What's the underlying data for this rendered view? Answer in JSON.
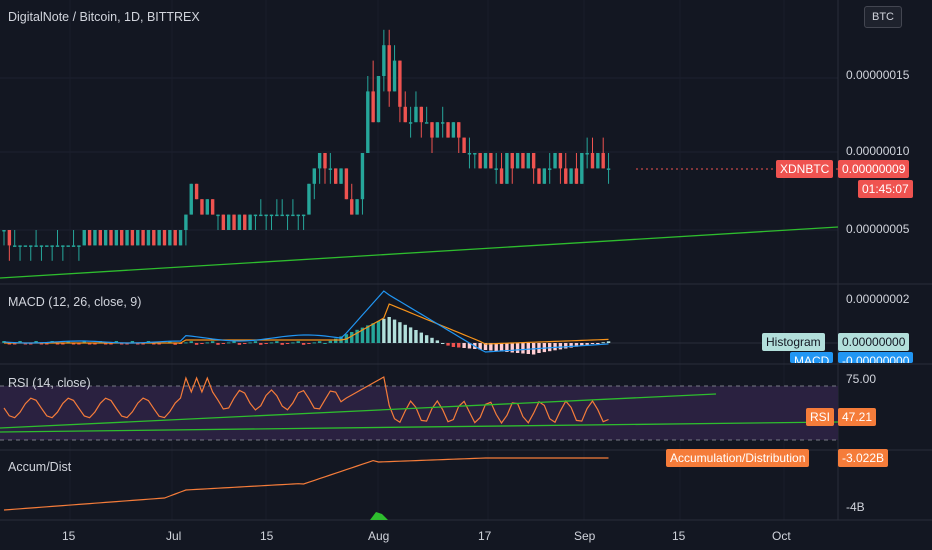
{
  "header": {
    "title": "DigitalNote / Bitcoin, 1D, BITTREX",
    "currency_button": "BTC"
  },
  "price_axis": {
    "ticks": [
      "0.00000015",
      "0.00000010",
      "0.00000005"
    ],
    "symbol_tag": "XDNBTC",
    "last_price": "0.00000009",
    "countdown": "01:45:07"
  },
  "macd": {
    "title": "MACD (12, 26, close, 9)",
    "axis_tick": "0.00000002",
    "histogram_label": "Histogram",
    "histogram_value": "0.00000000",
    "macd_label": "MACD",
    "macd_value": "-0.00000000"
  },
  "rsi": {
    "title": "RSI (14, close)",
    "axis_tick": "75.00",
    "label": "RSI",
    "value": "47.21"
  },
  "accum": {
    "title": "Accum/Dist",
    "label": "Accumulation/Distribution",
    "value": "-3.022B",
    "axis_tick": "-4B"
  },
  "time_axis": {
    "ticks": [
      "15",
      "Jul",
      "15",
      "Aug",
      "17",
      "Sep",
      "15",
      "Oct"
    ]
  },
  "colors": {
    "background": "#131722",
    "up": "#26a69a",
    "down": "#ef5350",
    "trendline": "#2ebd2e",
    "signal": "#f7931a",
    "macd_line": "#2196f3",
    "rsi_line": "#f57c3a",
    "accum_line": "#f57c3a",
    "rsi_band": "#2a2140"
  },
  "chart_data": {
    "type": "candlestick",
    "title": "DigitalNote / Bitcoin, 1D, BITTREX",
    "y_ticks": [
      1.5e-07,
      1e-07,
      5e-08
    ],
    "x_tick_labels": [
      "15",
      "Jul",
      "15",
      "Aug",
      "17",
      "Sep",
      "15",
      "Oct"
    ],
    "candles": [
      {
        "o": 5,
        "h": 5,
        "l": 4,
        "c": 5
      },
      {
        "o": 5,
        "h": 5,
        "l": 3,
        "c": 4
      },
      {
        "o": 4,
        "h": 5,
        "l": 4,
        "c": 4
      },
      {
        "o": 4,
        "h": 4,
        "l": 3,
        "c": 4
      },
      {
        "o": 4,
        "h": 4,
        "l": 4,
        "c": 4
      },
      {
        "o": 4,
        "h": 4,
        "l": 3,
        "c": 4
      },
      {
        "o": 4,
        "h": 5,
        "l": 4,
        "c": 4
      },
      {
        "o": 4,
        "h": 4,
        "l": 3,
        "c": 4
      },
      {
        "o": 4,
        "h": 4,
        "l": 4,
        "c": 4
      },
      {
        "o": 4,
        "h": 4,
        "l": 3,
        "c": 4
      },
      {
        "o": 4,
        "h": 5,
        "l": 4,
        "c": 4
      },
      {
        "o": 4,
        "h": 4,
        "l": 3,
        "c": 4
      },
      {
        "o": 4,
        "h": 4,
        "l": 4,
        "c": 4
      },
      {
        "o": 4,
        "h": 5,
        "l": 4,
        "c": 4
      },
      {
        "o": 4,
        "h": 4,
        "l": 3,
        "c": 4
      },
      {
        "o": 4,
        "h": 5,
        "l": 4,
        "c": 5
      },
      {
        "o": 5,
        "h": 5,
        "l": 4,
        "c": 4
      },
      {
        "o": 4,
        "h": 5,
        "l": 4,
        "c": 5
      },
      {
        "o": 5,
        "h": 5,
        "l": 4,
        "c": 4
      },
      {
        "o": 4,
        "h": 5,
        "l": 4,
        "c": 5
      },
      {
        "o": 5,
        "h": 5,
        "l": 4,
        "c": 4
      },
      {
        "o": 4,
        "h": 5,
        "l": 4,
        "c": 5
      },
      {
        "o": 5,
        "h": 5,
        "l": 4,
        "c": 4
      },
      {
        "o": 4,
        "h": 5,
        "l": 4,
        "c": 5
      },
      {
        "o": 5,
        "h": 5,
        "l": 4,
        "c": 4
      },
      {
        "o": 4,
        "h": 5,
        "l": 4,
        "c": 5
      },
      {
        "o": 5,
        "h": 5,
        "l": 4,
        "c": 4
      },
      {
        "o": 4,
        "h": 5,
        "l": 4,
        "c": 5
      },
      {
        "o": 5,
        "h": 5,
        "l": 4,
        "c": 4
      },
      {
        "o": 4,
        "h": 5,
        "l": 4,
        "c": 5
      },
      {
        "o": 5,
        "h": 5,
        "l": 4,
        "c": 4
      },
      {
        "o": 4,
        "h": 5,
        "l": 4,
        "c": 5
      },
      {
        "o": 5,
        "h": 5,
        "l": 4,
        "c": 4
      },
      {
        "o": 4,
        "h": 5,
        "l": 4,
        "c": 5
      },
      {
        "o": 5,
        "h": 6,
        "l": 4,
        "c": 6
      },
      {
        "o": 6,
        "h": 8,
        "l": 6,
        "c": 8
      },
      {
        "o": 8,
        "h": 8,
        "l": 7,
        "c": 7
      },
      {
        "o": 7,
        "h": 7,
        "l": 6,
        "c": 6
      },
      {
        "o": 6,
        "h": 7,
        "l": 6,
        "c": 7
      },
      {
        "o": 7,
        "h": 7,
        "l": 6,
        "c": 6
      },
      {
        "o": 6,
        "h": 6,
        "l": 5,
        "c": 6
      },
      {
        "o": 6,
        "h": 6,
        "l": 5,
        "c": 5
      },
      {
        "o": 5,
        "h": 6,
        "l": 5,
        "c": 6
      },
      {
        "o": 6,
        "h": 6,
        "l": 5,
        "c": 5
      },
      {
        "o": 5,
        "h": 6,
        "l": 5,
        "c": 6
      },
      {
        "o": 6,
        "h": 6,
        "l": 5,
        "c": 5
      },
      {
        "o": 5,
        "h": 6,
        "l": 5,
        "c": 6
      },
      {
        "o": 6,
        "h": 6,
        "l": 5,
        "c": 6
      },
      {
        "o": 6,
        "h": 7,
        "l": 6,
        "c": 6
      },
      {
        "o": 6,
        "h": 6,
        "l": 5,
        "c": 6
      },
      {
        "o": 6,
        "h": 6,
        "l": 5,
        "c": 6
      },
      {
        "o": 6,
        "h": 7,
        "l": 6,
        "c": 6
      },
      {
        "o": 6,
        "h": 7,
        "l": 6,
        "c": 6
      },
      {
        "o": 6,
        "h": 6,
        "l": 5,
        "c": 6
      },
      {
        "o": 6,
        "h": 7,
        "l": 6,
        "c": 6
      },
      {
        "o": 6,
        "h": 6,
        "l": 5,
        "c": 6
      },
      {
        "o": 6,
        "h": 6,
        "l": 5,
        "c": 6
      },
      {
        "o": 6,
        "h": 8,
        "l": 6,
        "c": 8
      },
      {
        "o": 8,
        "h": 9,
        "l": 7,
        "c": 9
      },
      {
        "o": 9,
        "h": 10,
        "l": 8,
        "c": 10
      },
      {
        "o": 10,
        "h": 10,
        "l": 8,
        "c": 9
      },
      {
        "o": 9,
        "h": 10,
        "l": 8,
        "c": 9
      },
      {
        "o": 9,
        "h": 9,
        "l": 8,
        "c": 8
      },
      {
        "o": 8,
        "h": 9,
        "l": 8,
        "c": 9
      },
      {
        "o": 9,
        "h": 9,
        "l": 7,
        "c": 7
      },
      {
        "o": 7,
        "h": 8,
        "l": 6,
        "c": 6
      },
      {
        "o": 6,
        "h": 7,
        "l": 6,
        "c": 7
      },
      {
        "o": 7,
        "h": 10,
        "l": 6,
        "c": 10
      },
      {
        "o": 10,
        "h": 15,
        "l": 10,
        "c": 14
      },
      {
        "o": 14,
        "h": 16,
        "l": 12,
        "c": 12
      },
      {
        "o": 12,
        "h": 15,
        "l": 12,
        "c": 15
      },
      {
        "o": 15,
        "h": 18,
        "l": 14,
        "c": 17
      },
      {
        "o": 17,
        "h": 18,
        "l": 13,
        "c": 14
      },
      {
        "o": 14,
        "h": 17,
        "l": 14,
        "c": 16
      },
      {
        "o": 16,
        "h": 16,
        "l": 12,
        "c": 13
      },
      {
        "o": 13,
        "h": 14,
        "l": 12,
        "c": 12
      },
      {
        "o": 12,
        "h": 13,
        "l": 11,
        "c": 12
      },
      {
        "o": 12,
        "h": 14,
        "l": 12,
        "c": 13
      },
      {
        "o": 13,
        "h": 13,
        "l": 11,
        "c": 12
      },
      {
        "o": 12,
        "h": 13,
        "l": 12,
        "c": 12
      },
      {
        "o": 12,
        "h": 12,
        "l": 10,
        "c": 11
      },
      {
        "o": 11,
        "h": 12,
        "l": 11,
        "c": 12
      },
      {
        "o": 12,
        "h": 13,
        "l": 11,
        "c": 12
      },
      {
        "o": 12,
        "h": 12,
        "l": 11,
        "c": 11
      },
      {
        "o": 11,
        "h": 12,
        "l": 11,
        "c": 12
      },
      {
        "o": 12,
        "h": 12,
        "l": 10,
        "c": 11
      },
      {
        "o": 11,
        "h": 11,
        "l": 10,
        "c": 10
      },
      {
        "o": 10,
        "h": 11,
        "l": 9,
        "c": 10
      },
      {
        "o": 10,
        "h": 10,
        "l": 9,
        "c": 10
      },
      {
        "o": 10,
        "h": 10,
        "l": 9,
        "c": 9
      },
      {
        "o": 9,
        "h": 10,
        "l": 9,
        "c": 10
      },
      {
        "o": 10,
        "h": 10,
        "l": 9,
        "c": 9
      },
      {
        "o": 9,
        "h": 10,
        "l": 8,
        "c": 9
      },
      {
        "o": 9,
        "h": 10,
        "l": 8,
        "c": 8
      },
      {
        "o": 8,
        "h": 10,
        "l": 8,
        "c": 10
      },
      {
        "o": 10,
        "h": 10,
        "l": 8,
        "c": 9
      },
      {
        "o": 9,
        "h": 10,
        "l": 9,
        "c": 10
      },
      {
        "o": 10,
        "h": 10,
        "l": 9,
        "c": 9
      },
      {
        "o": 9,
        "h": 10,
        "l": 9,
        "c": 10
      },
      {
        "o": 10,
        "h": 10,
        "l": 8,
        "c": 9
      },
      {
        "o": 9,
        "h": 9,
        "l": 8,
        "c": 8
      },
      {
        "o": 8,
        "h": 9,
        "l": 8,
        "c": 9
      },
      {
        "o": 9,
        "h": 10,
        "l": 8,
        "c": 9
      },
      {
        "o": 9,
        "h": 10,
        "l": 9,
        "c": 10
      },
      {
        "o": 10,
        "h": 10,
        "l": 8,
        "c": 9
      },
      {
        "o": 9,
        "h": 10,
        "l": 8,
        "c": 8
      },
      {
        "o": 8,
        "h": 9,
        "l": 8,
        "c": 9
      },
      {
        "o": 9,
        "h": 10,
        "l": 8,
        "c": 8
      },
      {
        "o": 8,
        "h": 10,
        "l": 8,
        "c": 10
      },
      {
        "o": 10,
        "h": 11,
        "l": 9,
        "c": 10
      },
      {
        "o": 10,
        "h": 11,
        "l": 9,
        "c": 9
      },
      {
        "o": 9,
        "h": 10,
        "l": 9,
        "c": 10
      },
      {
        "o": 10,
        "h": 11,
        "l": 9,
        "c": 9
      },
      {
        "o": 9,
        "h": 10,
        "l": 8,
        "c": 9
      }
    ]
  }
}
